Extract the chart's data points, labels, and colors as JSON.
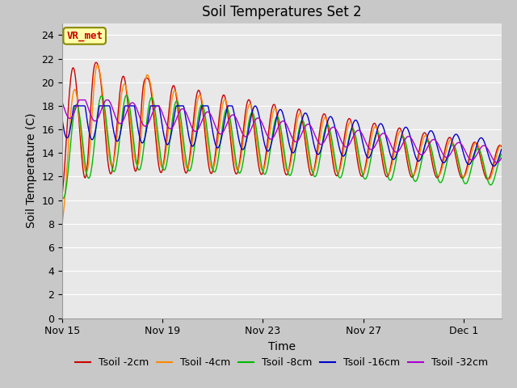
{
  "title": "Soil Temperatures Set 2",
  "xlabel": "Time",
  "ylabel": "Soil Temperature (C)",
  "ylim": [
    0,
    25
  ],
  "yticks": [
    0,
    2,
    4,
    6,
    8,
    10,
    12,
    14,
    16,
    18,
    20,
    22,
    24
  ],
  "xtick_labels": [
    "Nov 15",
    "Nov 19",
    "Nov 23",
    "Nov 27",
    "Dec 1"
  ],
  "xtick_positions": [
    0,
    4,
    8,
    12,
    16
  ],
  "xlim": [
    0,
    17.5
  ],
  "legend_labels": [
    "Tsoil -2cm",
    "Tsoil -4cm",
    "Tsoil -8cm",
    "Tsoil -16cm",
    "Tsoil -32cm"
  ],
  "line_colors": [
    "#cc0000",
    "#ff8800",
    "#00bb00",
    "#0000cc",
    "#aa00cc"
  ],
  "fig_facecolor": "#c8c8c8",
  "axes_facecolor": "#e8e8e8",
  "grid_color": "#ffffff",
  "annotation_text": "VR_met",
  "annotation_bg": "#ffffaa",
  "annotation_border": "#888800",
  "title_fontsize": 12,
  "label_fontsize": 10,
  "tick_fontsize": 9,
  "legend_fontsize": 9
}
